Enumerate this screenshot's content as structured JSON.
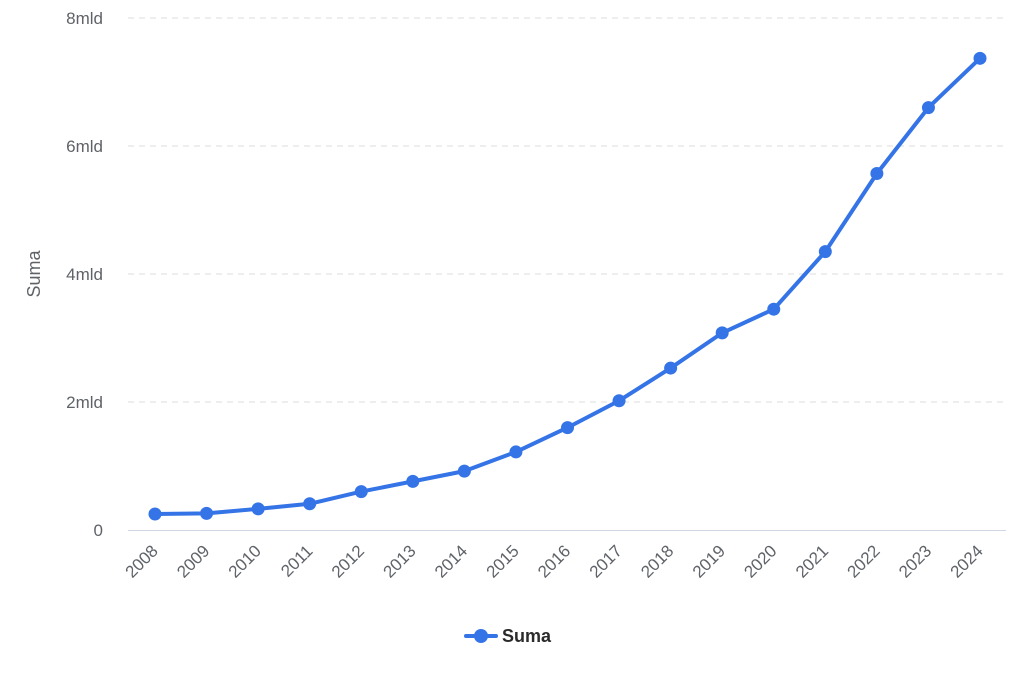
{
  "chart_data": {
    "type": "line",
    "title": "",
    "xlabel": "",
    "ylabel": "Suma",
    "ylim": [
      0,
      8000000000
    ],
    "grid": true,
    "legend_position": "bottom-center",
    "y_ticks": [
      {
        "value": 0,
        "label": "0"
      },
      {
        "value": 2000000000,
        "label": "2mld"
      },
      {
        "value": 4000000000,
        "label": "4mld"
      },
      {
        "value": 6000000000,
        "label": "6mld"
      },
      {
        "value": 8000000000,
        "label": "8mld"
      }
    ],
    "categories": [
      "2008",
      "2009",
      "2010",
      "2011",
      "2012",
      "2013",
      "2014",
      "2015",
      "2016",
      "2017",
      "2018",
      "2019",
      "2020",
      "2021",
      "2022",
      "2023",
      "2024"
    ],
    "series": [
      {
        "name": "Suma",
        "color": "#3574e6",
        "values": [
          250000000,
          260000000,
          330000000,
          410000000,
          600000000,
          760000000,
          920000000,
          1220000000,
          1600000000,
          2020000000,
          2530000000,
          3080000000,
          3450000000,
          4350000000,
          5570000000,
          6600000000,
          7370000000
        ]
      }
    ]
  }
}
